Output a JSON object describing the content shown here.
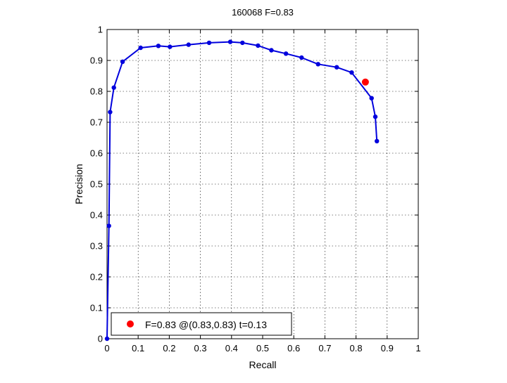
{
  "chart_data": {
    "type": "line",
    "title": "160068 F=0.83",
    "xlabel": "Recall",
    "ylabel": "Precision",
    "xlim": [
      0,
      1
    ],
    "ylim": [
      0,
      1
    ],
    "grid": true,
    "legend_position": "bottom-left",
    "x_ticks": [
      "0",
      "0.1",
      "0.2",
      "0.3",
      "0.4",
      "0.5",
      "0.6",
      "0.7",
      "0.8",
      "0.9",
      "1"
    ],
    "y_ticks": [
      "0",
      "0.1",
      "0.2",
      "0.3",
      "0.4",
      "0.5",
      "0.6",
      "0.7",
      "0.8",
      "0.9",
      "1"
    ],
    "series": [
      {
        "color": "#0000dd",
        "x": [
          0.0,
          0.006,
          0.01,
          0.022,
          0.05,
          0.108,
          0.165,
          0.202,
          0.262,
          0.328,
          0.396,
          0.435,
          0.485,
          0.528,
          0.575,
          0.625,
          0.678,
          0.738,
          0.786,
          0.85,
          0.862,
          0.867
        ],
        "y": [
          0.0,
          0.365,
          0.733,
          0.812,
          0.896,
          0.941,
          0.947,
          0.944,
          0.951,
          0.957,
          0.96,
          0.957,
          0.948,
          0.933,
          0.922,
          0.909,
          0.888,
          0.878,
          0.861,
          0.778,
          0.718,
          0.639
        ]
      }
    ],
    "highlight_point": {
      "x": 0.83,
      "y": 0.83,
      "color": "#ff0000",
      "legend_label": "F=0.83 @(0.83,0.83) t=0.13"
    }
  }
}
